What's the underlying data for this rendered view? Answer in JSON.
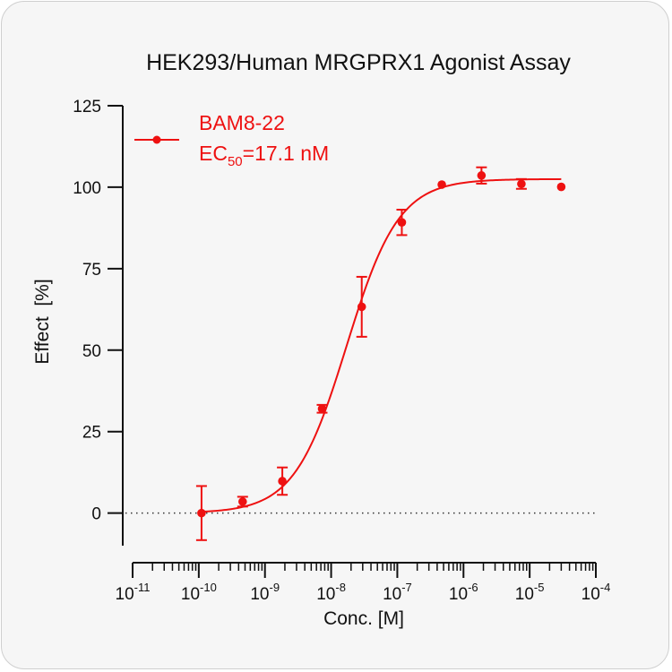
{
  "chart_data": {
    "type": "scatter",
    "title": "HEK293/Human MRGPRX1 Agonist Assay",
    "xlabel": "Conc. [M]",
    "ylabel": "Effect  [%]",
    "x_scale": "log",
    "xlim": [
      1e-11,
      0.0001
    ],
    "ylim": [
      -10,
      125
    ],
    "y_ticks": [
      0,
      25,
      50,
      75,
      100,
      125
    ],
    "x_ticks": [
      1e-11,
      1e-10,
      1e-09,
      1e-08,
      1e-07,
      1e-06,
      1e-05,
      0.0001
    ],
    "x_tick_labels": [
      {
        "base": "10",
        "exp": "-11"
      },
      {
        "base": "10",
        "exp": "-10"
      },
      {
        "base": "10",
        "exp": "-9"
      },
      {
        "base": "10",
        "exp": "-8"
      },
      {
        "base": "10",
        "exp": "-7"
      },
      {
        "base": "10",
        "exp": "-6"
      },
      {
        "base": "10",
        "exp": "-5"
      },
      {
        "base": "10",
        "exp": "-4"
      }
    ],
    "baseline": 0,
    "legend_position": "top-left",
    "series": [
      {
        "name": "BAM8-22",
        "color": "#ee1111",
        "ec50_label": {
          "prefix": "EC",
          "sub": "50",
          "suffix": "=17.1 nM"
        },
        "ec50": 1.71e-08,
        "hill_slope": 1.1,
        "bottom": 0,
        "top": 102.5,
        "points": [
          {
            "x": 1.1e-10,
            "y": 0,
            "err": 8.3
          },
          {
            "x": 4.6e-10,
            "y": 3.5,
            "err": 1.5
          },
          {
            "x": 1.83e-09,
            "y": 9.8,
            "err": 4.2
          },
          {
            "x": 7.3e-09,
            "y": 32,
            "err": 1.2
          },
          {
            "x": 2.9e-08,
            "y": 63.3,
            "err": 9.2
          },
          {
            "x": 1.17e-07,
            "y": 89.2,
            "err": 3.9
          },
          {
            "x": 4.7e-07,
            "y": 100.8,
            "err": 0.5
          },
          {
            "x": 1.87e-06,
            "y": 103.6,
            "err": 2.5
          },
          {
            "x": 7.5e-06,
            "y": 101,
            "err": 1.5
          },
          {
            "x": 3e-05,
            "y": 100.1,
            "err": 0.5
          }
        ]
      }
    ]
  }
}
